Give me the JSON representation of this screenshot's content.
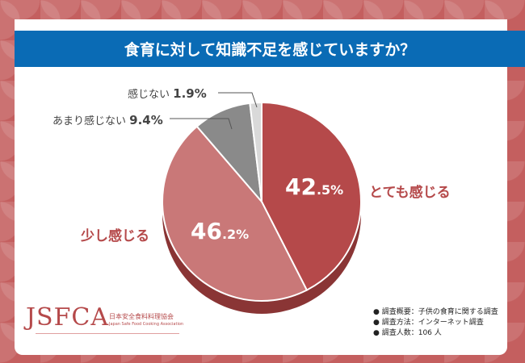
{
  "title": "食育に対して知識不足を感じていますか？",
  "chart_data": {
    "type": "pie",
    "title": "食育に対して知識不足を感じていますか？",
    "slices": [
      {
        "label": "とても感じる",
        "value": 42.5,
        "int": "42",
        "dec": ".5%",
        "color": "#b5494a"
      },
      {
        "label": "少し感じる",
        "value": 46.2,
        "int": "46",
        "dec": ".2%",
        "color": "#c97878"
      },
      {
        "label": "あまり感じない",
        "value": 9.4,
        "text": "9.4%",
        "color": "#8a8a8a"
      },
      {
        "label": "感じない",
        "value": 1.9,
        "text": "1.9%",
        "color": "#d9d9d9"
      }
    ]
  },
  "logo": {
    "abbr": "JSFCA",
    "jp": "日本安全食料料理協会",
    "en": "Japan Safe Food Cooking Association"
  },
  "notes": [
    "● 調査概要：子供の食育に関する調査",
    "● 調査方法：インターネット調査",
    "● 調査人数：106 人"
  ]
}
